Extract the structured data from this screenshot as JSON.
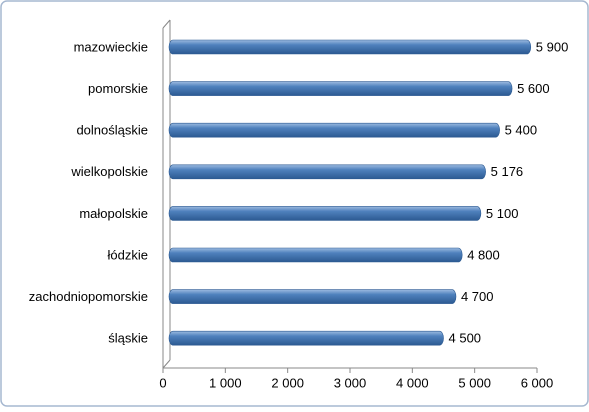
{
  "chart_data": {
    "type": "bar",
    "orientation": "horizontal",
    "categories": [
      "mazowieckie",
      "pomorskie",
      "dolnośląskie",
      "wielkopolskie",
      "małopolskie",
      "łódzkie",
      "zachodniopomorskie",
      "śląskie"
    ],
    "values": [
      5900,
      5600,
      5400,
      5176,
      5100,
      4800,
      4700,
      4500
    ],
    "value_labels": [
      "5 900",
      "5 600",
      "5 400",
      "5 176",
      "5 100",
      "4 800",
      "4 700",
      "4 500"
    ],
    "color": "#4f81bd",
    "xlim": [
      0,
      6000
    ],
    "xticks": [
      0,
      {
        "value": 1000,
        "label": "1 000"
      },
      {
        "value": 2000,
        "label": "2 000"
      },
      {
        "value": 3000,
        "label": "3 000"
      },
      {
        "value": 4000,
        "label": "4 000"
      },
      {
        "value": 5000,
        "label": "5 000"
      },
      {
        "value": 6000,
        "label": "6 000"
      }
    ],
    "grid": false
  }
}
